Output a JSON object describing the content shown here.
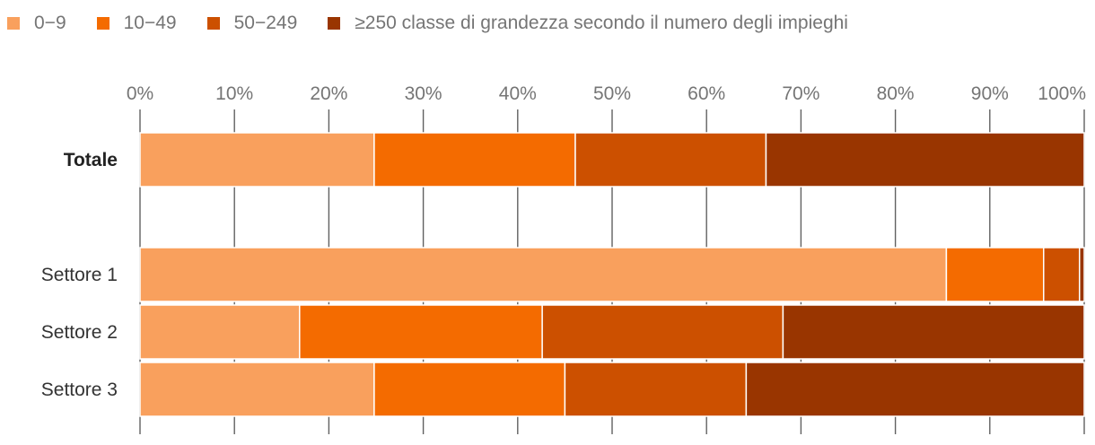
{
  "chart_data": {
    "type": "bar",
    "orientation": "horizontal",
    "stacked": true,
    "normalized": true,
    "categories": [
      "Totale",
      "Settore 1",
      "Settore 2",
      "Settore 3"
    ],
    "category_bold": [
      true,
      false,
      false,
      false
    ],
    "series": [
      {
        "name": "0−9",
        "color": "#F9A05D",
        "values": [
          24.8,
          85.4,
          16.9,
          24.8
        ]
      },
      {
        "name": "10−49",
        "color": "#F46B00",
        "values": [
          21.3,
          10.3,
          25.7,
          20.2
        ]
      },
      {
        "name": "50−249",
        "color": "#CC5000",
        "values": [
          20.2,
          3.8,
          25.5,
          19.2
        ]
      },
      {
        "name": "≥250 classe di grandezza secondo il numero degli impieghi",
        "color": "#993500",
        "values": [
          33.7,
          0.5,
          31.9,
          35.8
        ]
      }
    ],
    "xlim": [
      0,
      100
    ],
    "xticks": [
      "0%",
      "10%",
      "20%",
      "30%",
      "40%",
      "50%",
      "60%",
      "70%",
      "80%",
      "90%",
      "100%"
    ],
    "grid": true,
    "legend_position": "top-left",
    "xlabel": "",
    "ylabel": "",
    "title": ""
  }
}
